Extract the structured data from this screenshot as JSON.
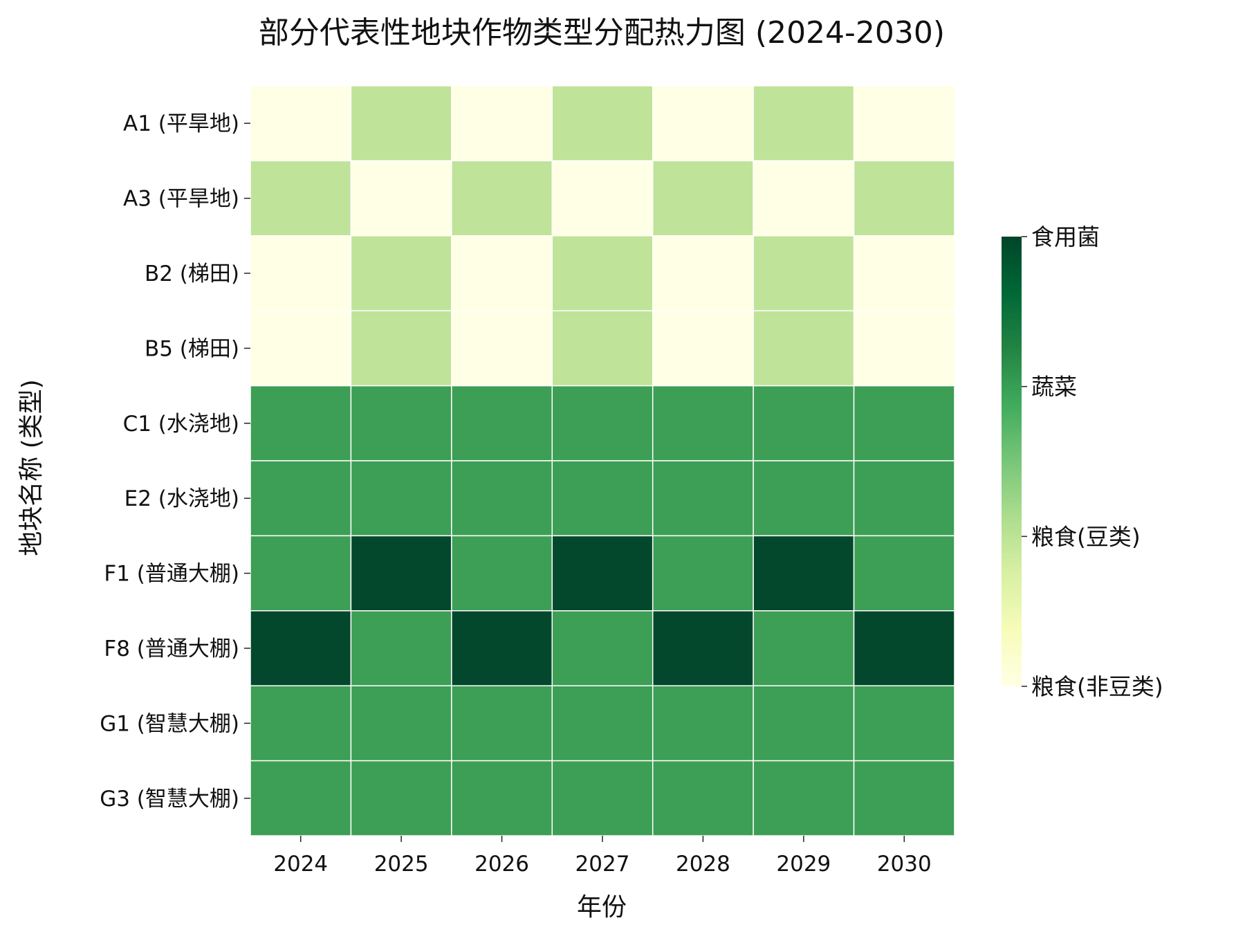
{
  "chart_data": {
    "type": "heatmap",
    "title": "部分代表性地块作物类型分配热力图 (2024-2030)",
    "xlabel": "年份",
    "ylabel": "地块名称 (类型)",
    "x_categories": [
      "2024",
      "2025",
      "2026",
      "2027",
      "2028",
      "2029",
      "2030"
    ],
    "y_categories": [
      "A1 (平旱地)",
      "A3 (平旱地)",
      "B2 (梯田)",
      "B5 (梯田)",
      "C1 (水浇地)",
      "E2 (水浇地)",
      "F1 (普通大棚)",
      "F8 (普通大棚)",
      "G1 (智慧大棚)",
      "G3 (智慧大棚)"
    ],
    "colorbar": {
      "range": [
        0,
        3
      ],
      "ticks": [
        0,
        1,
        2,
        3
      ],
      "tick_labels": [
        "粮食(非豆类)",
        "粮食(豆类)",
        "蔬菜",
        "食用菌"
      ],
      "colormap": "Greens-like",
      "colors": [
        "#ffffe5",
        "#f7fcb9",
        "#d9f0a3",
        "#addd8e",
        "#78c679",
        "#41ab5d",
        "#238443",
        "#006837",
        "#004529"
      ]
    },
    "values": [
      [
        0,
        1,
        0,
        1,
        0,
        1,
        0
      ],
      [
        1,
        0,
        1,
        0,
        1,
        0,
        1
      ],
      [
        0,
        1,
        0,
        1,
        0,
        1,
        0
      ],
      [
        0,
        1,
        0,
        1,
        0,
        1,
        0
      ],
      [
        2,
        2,
        2,
        2,
        2,
        2,
        2
      ],
      [
        2,
        2,
        2,
        2,
        2,
        2,
        2
      ],
      [
        2,
        3,
        2,
        3,
        2,
        3,
        2
      ],
      [
        3,
        2,
        3,
        2,
        3,
        2,
        3
      ],
      [
        2,
        2,
        2,
        2,
        2,
        2,
        2
      ],
      [
        2,
        2,
        2,
        2,
        2,
        2,
        2
      ]
    ],
    "value_colors": {
      "0": "#ffffe5",
      "1": "#bfe398",
      "2": "#3d9e55",
      "3": "#03482c"
    },
    "cell_border_color": "#ffffff"
  }
}
